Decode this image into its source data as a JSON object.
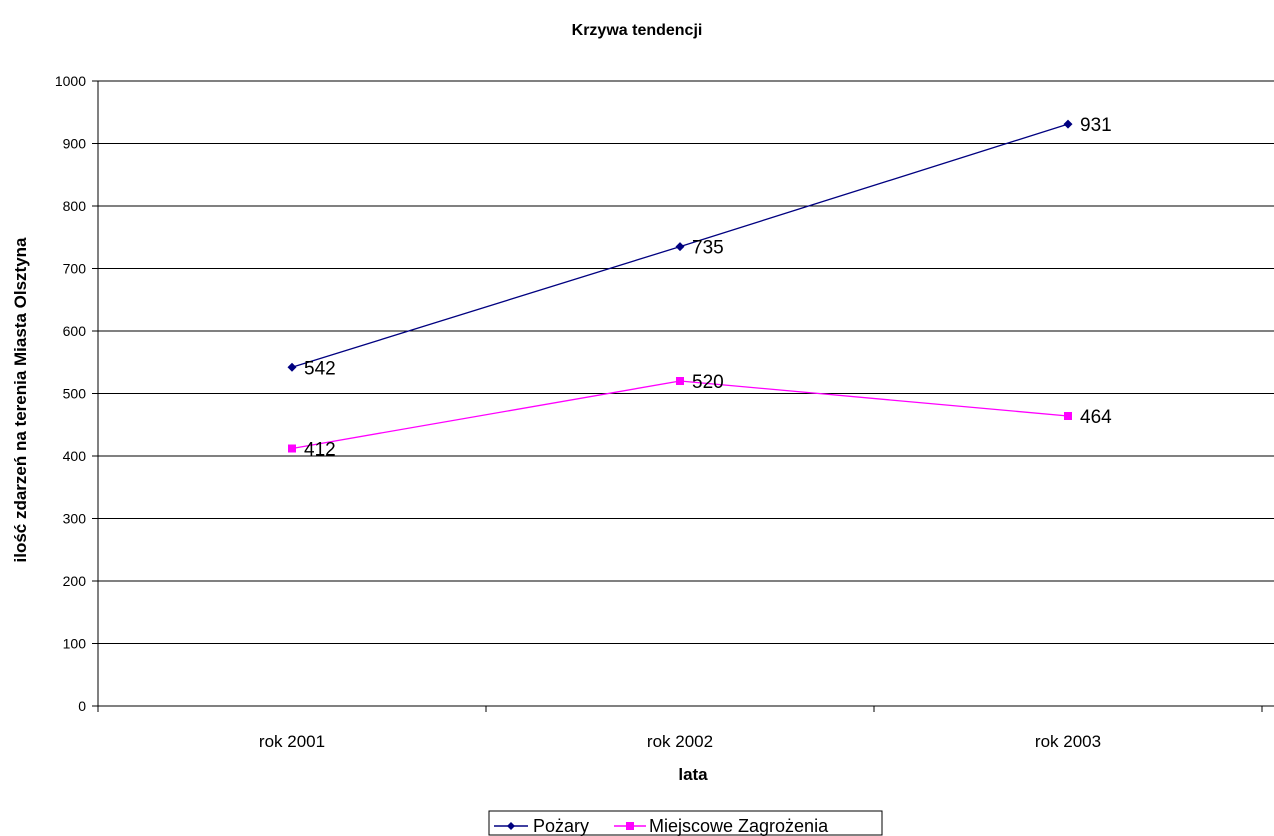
{
  "chart_data": {
    "type": "line",
    "title": "Krzywa tendencji",
    "xlabel": "lata",
    "ylabel": "ilość zdarzeń na terenia Miasta Olsztyna",
    "categories": [
      "rok 2001",
      "rok 2002",
      "rok 2003"
    ],
    "ylim": [
      0,
      1000
    ],
    "yticks": [
      "0",
      "100",
      "200",
      "300",
      "400",
      "500",
      "600",
      "700",
      "800",
      "900",
      "1000"
    ],
    "grid": true,
    "legend_position": "bottom",
    "series": [
      {
        "name": "Pożary",
        "values": [
          542,
          735,
          931
        ],
        "labels": [
          "542",
          "735",
          "931"
        ],
        "color": "#000080",
        "marker": "diamond"
      },
      {
        "name": "Miejscowe Zagrożenia",
        "values": [
          412,
          520,
          464
        ],
        "labels": [
          "412",
          "520",
          "464"
        ],
        "color": "#FF00FF",
        "marker": "square"
      }
    ]
  }
}
